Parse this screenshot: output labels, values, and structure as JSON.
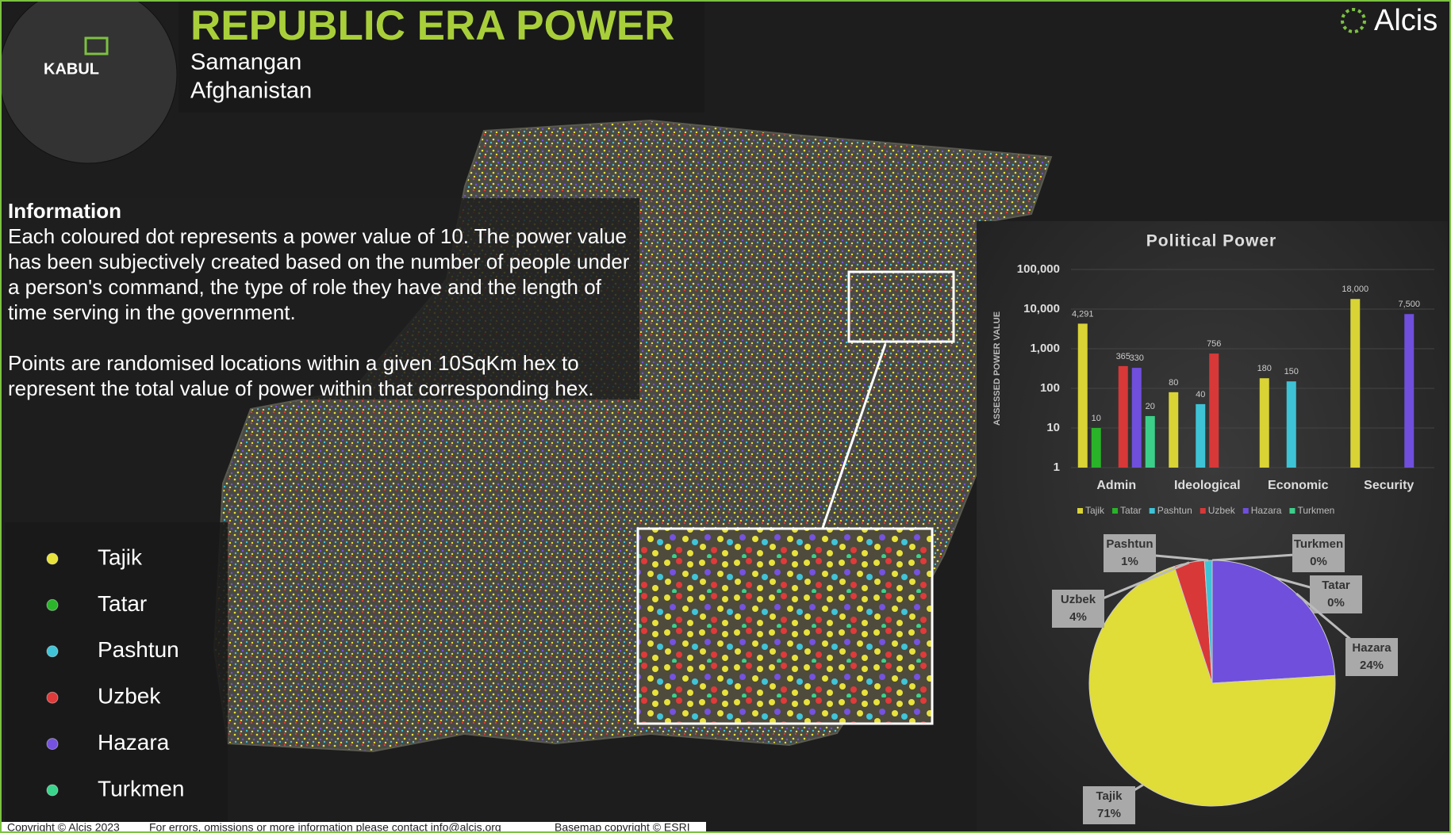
{
  "header": {
    "title": "REPUBLIC ERA POWER",
    "subtitle": [
      "Samangan",
      "Afghanistan"
    ],
    "locator_label": "KABUL",
    "logo": "Alcis"
  },
  "information": {
    "heading": "Information",
    "paragraphs": [
      "Each coloured dot represents a power value of 10. The power value has been subjectively created based on the number of people under a person's command, the type of role they have and the length of time serving in the government.",
      "Points are randomised locations within a given 10SqKm hex to represent the total value of power within that corresponding hex."
    ]
  },
  "legend": {
    "items": [
      {
        "name": "Tajik",
        "color": "#e8e23c"
      },
      {
        "name": "Tatar",
        "color": "#2bb52b"
      },
      {
        "name": "Pashtun",
        "color": "#40c4d8"
      },
      {
        "name": "Uzbek",
        "color": "#e03a3a"
      },
      {
        "name": "Hazara",
        "color": "#7552e0"
      },
      {
        "name": "Turkmen",
        "color": "#3ad48c"
      }
    ]
  },
  "chart_data": [
    {
      "type": "bar",
      "title": "Political Power",
      "y_label": "ASSESSED POWER VALUE",
      "log_scale": true,
      "legend": "bottom",
      "categories": [
        "Admin",
        "Ideological",
        "Economic",
        "Security"
      ],
      "series": [
        {
          "name": "Tajik",
          "color": "#d9d336",
          "values": [
            4291,
            80,
            180,
            18000
          ],
          "value_labels": [
            "4,291",
            "80",
            "180",
            "18,000"
          ]
        },
        {
          "name": "Tatar",
          "color": "#29b329",
          "values": [
            10,
            null,
            null,
            null
          ],
          "value_labels": [
            "10",
            null,
            null,
            null
          ]
        },
        {
          "name": "Pashtun",
          "color": "#3ec3d6",
          "values": [
            null,
            40,
            150,
            null
          ],
          "value_labels": [
            null,
            "40",
            "150",
            null
          ]
        },
        {
          "name": "Uzbek",
          "color": "#d83838",
          "values": [
            365,
            756,
            null,
            null
          ],
          "value_labels": [
            "365",
            "756",
            null,
            null
          ]
        },
        {
          "name": "Hazara",
          "color": "#6f4fdc",
          "values": [
            330,
            null,
            null,
            7500
          ],
          "value_labels": [
            "330",
            null,
            null,
            "7,500"
          ]
        },
        {
          "name": "Turkmen",
          "color": "#3ccf8a",
          "values": [
            20,
            null,
            null,
            null
          ],
          "value_labels": [
            "20",
            null,
            null,
            null
          ]
        }
      ],
      "ylim": [
        1,
        100000
      ],
      "yticks": [
        1,
        10,
        100,
        {
          "value": 1000,
          "label": "1,000"
        },
        {
          "value": 10000,
          "label": "10,000"
        },
        {
          "value": 100000,
          "label": "100,000"
        }
      ]
    },
    {
      "type": "pie",
      "categories": [
        "Turkmen",
        "Tatar",
        "Hazara",
        "Tajik",
        "Uzbek",
        "Pashtun"
      ],
      "values": [
        0,
        0,
        24,
        71,
        4,
        1
      ],
      "value_labels": [
        "0%",
        "0%",
        "24%",
        "71%",
        "4%",
        "1%"
      ],
      "colors": [
        "#3ccf8a",
        "#29b329",
        "#6f4fdc",
        "#e0dc38",
        "#d83838",
        "#3ec3d6"
      ]
    }
  ],
  "footer": [
    "Copyright © Alcis 2023",
    "For errors, omissions or more information please contact info@alcis.org",
    "Basemap copyright © ESRI"
  ]
}
